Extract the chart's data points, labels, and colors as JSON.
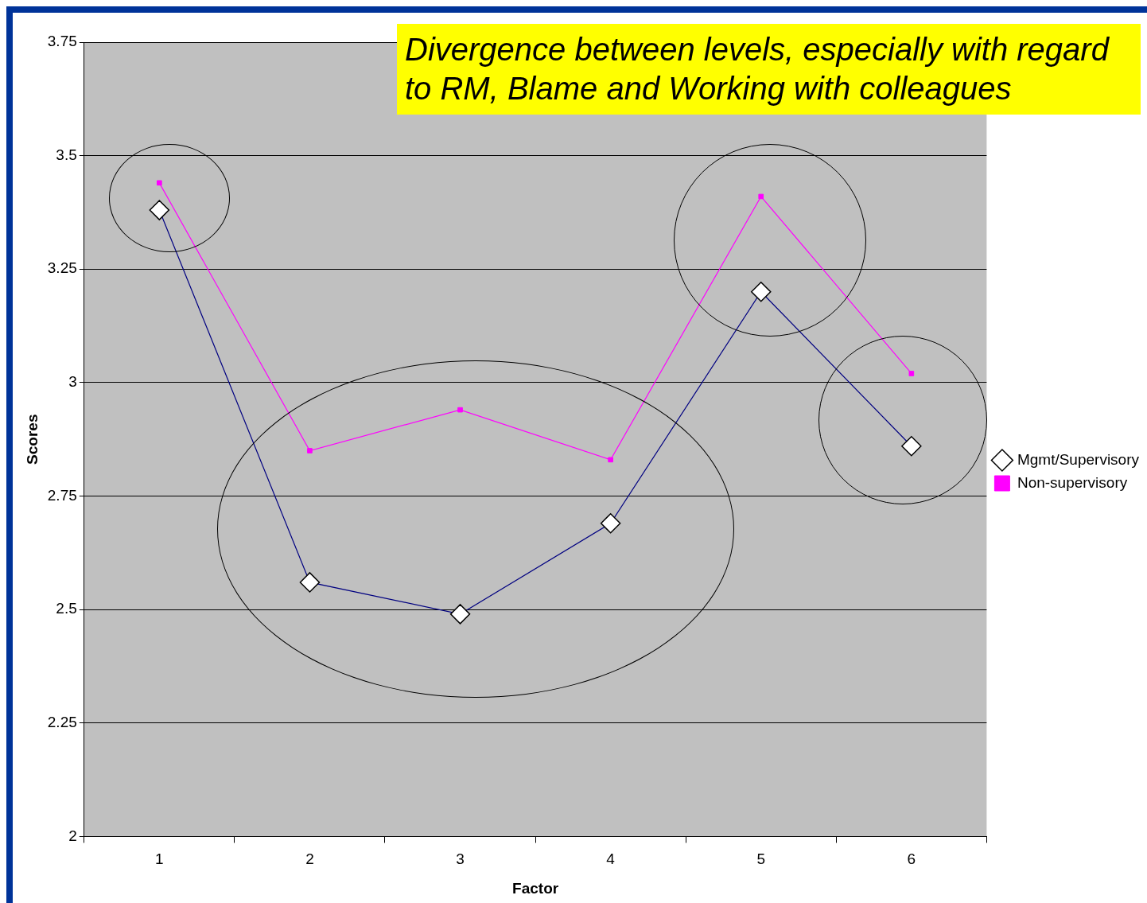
{
  "chart_data": {
    "type": "line",
    "xlabel": "Factor",
    "ylabel": "Scores",
    "annotations": [
      "Divergence between levels, especially with regard to RM, Blame and Working with colleagues"
    ],
    "categories": [
      "1",
      "2",
      "3",
      "4",
      "5",
      "6"
    ],
    "series": [
      {
        "name": "Mgmt/Supervisory",
        "color": "#000080",
        "marker": "diamond",
        "values": [
          3.38,
          2.56,
          2.49,
          2.69,
          3.2,
          2.86
        ]
      },
      {
        "name": "Non-supervisory",
        "color": "#ff00ff",
        "marker": "square",
        "values": [
          3.44,
          2.85,
          2.94,
          2.83,
          3.41,
          3.02
        ]
      }
    ],
    "ylim": [
      2,
      3.75
    ],
    "yticks": [
      2,
      2.25,
      2.5,
      2.75,
      3,
      3.25,
      3.5,
      3.75
    ],
    "grid": "y",
    "legend": "right"
  }
}
